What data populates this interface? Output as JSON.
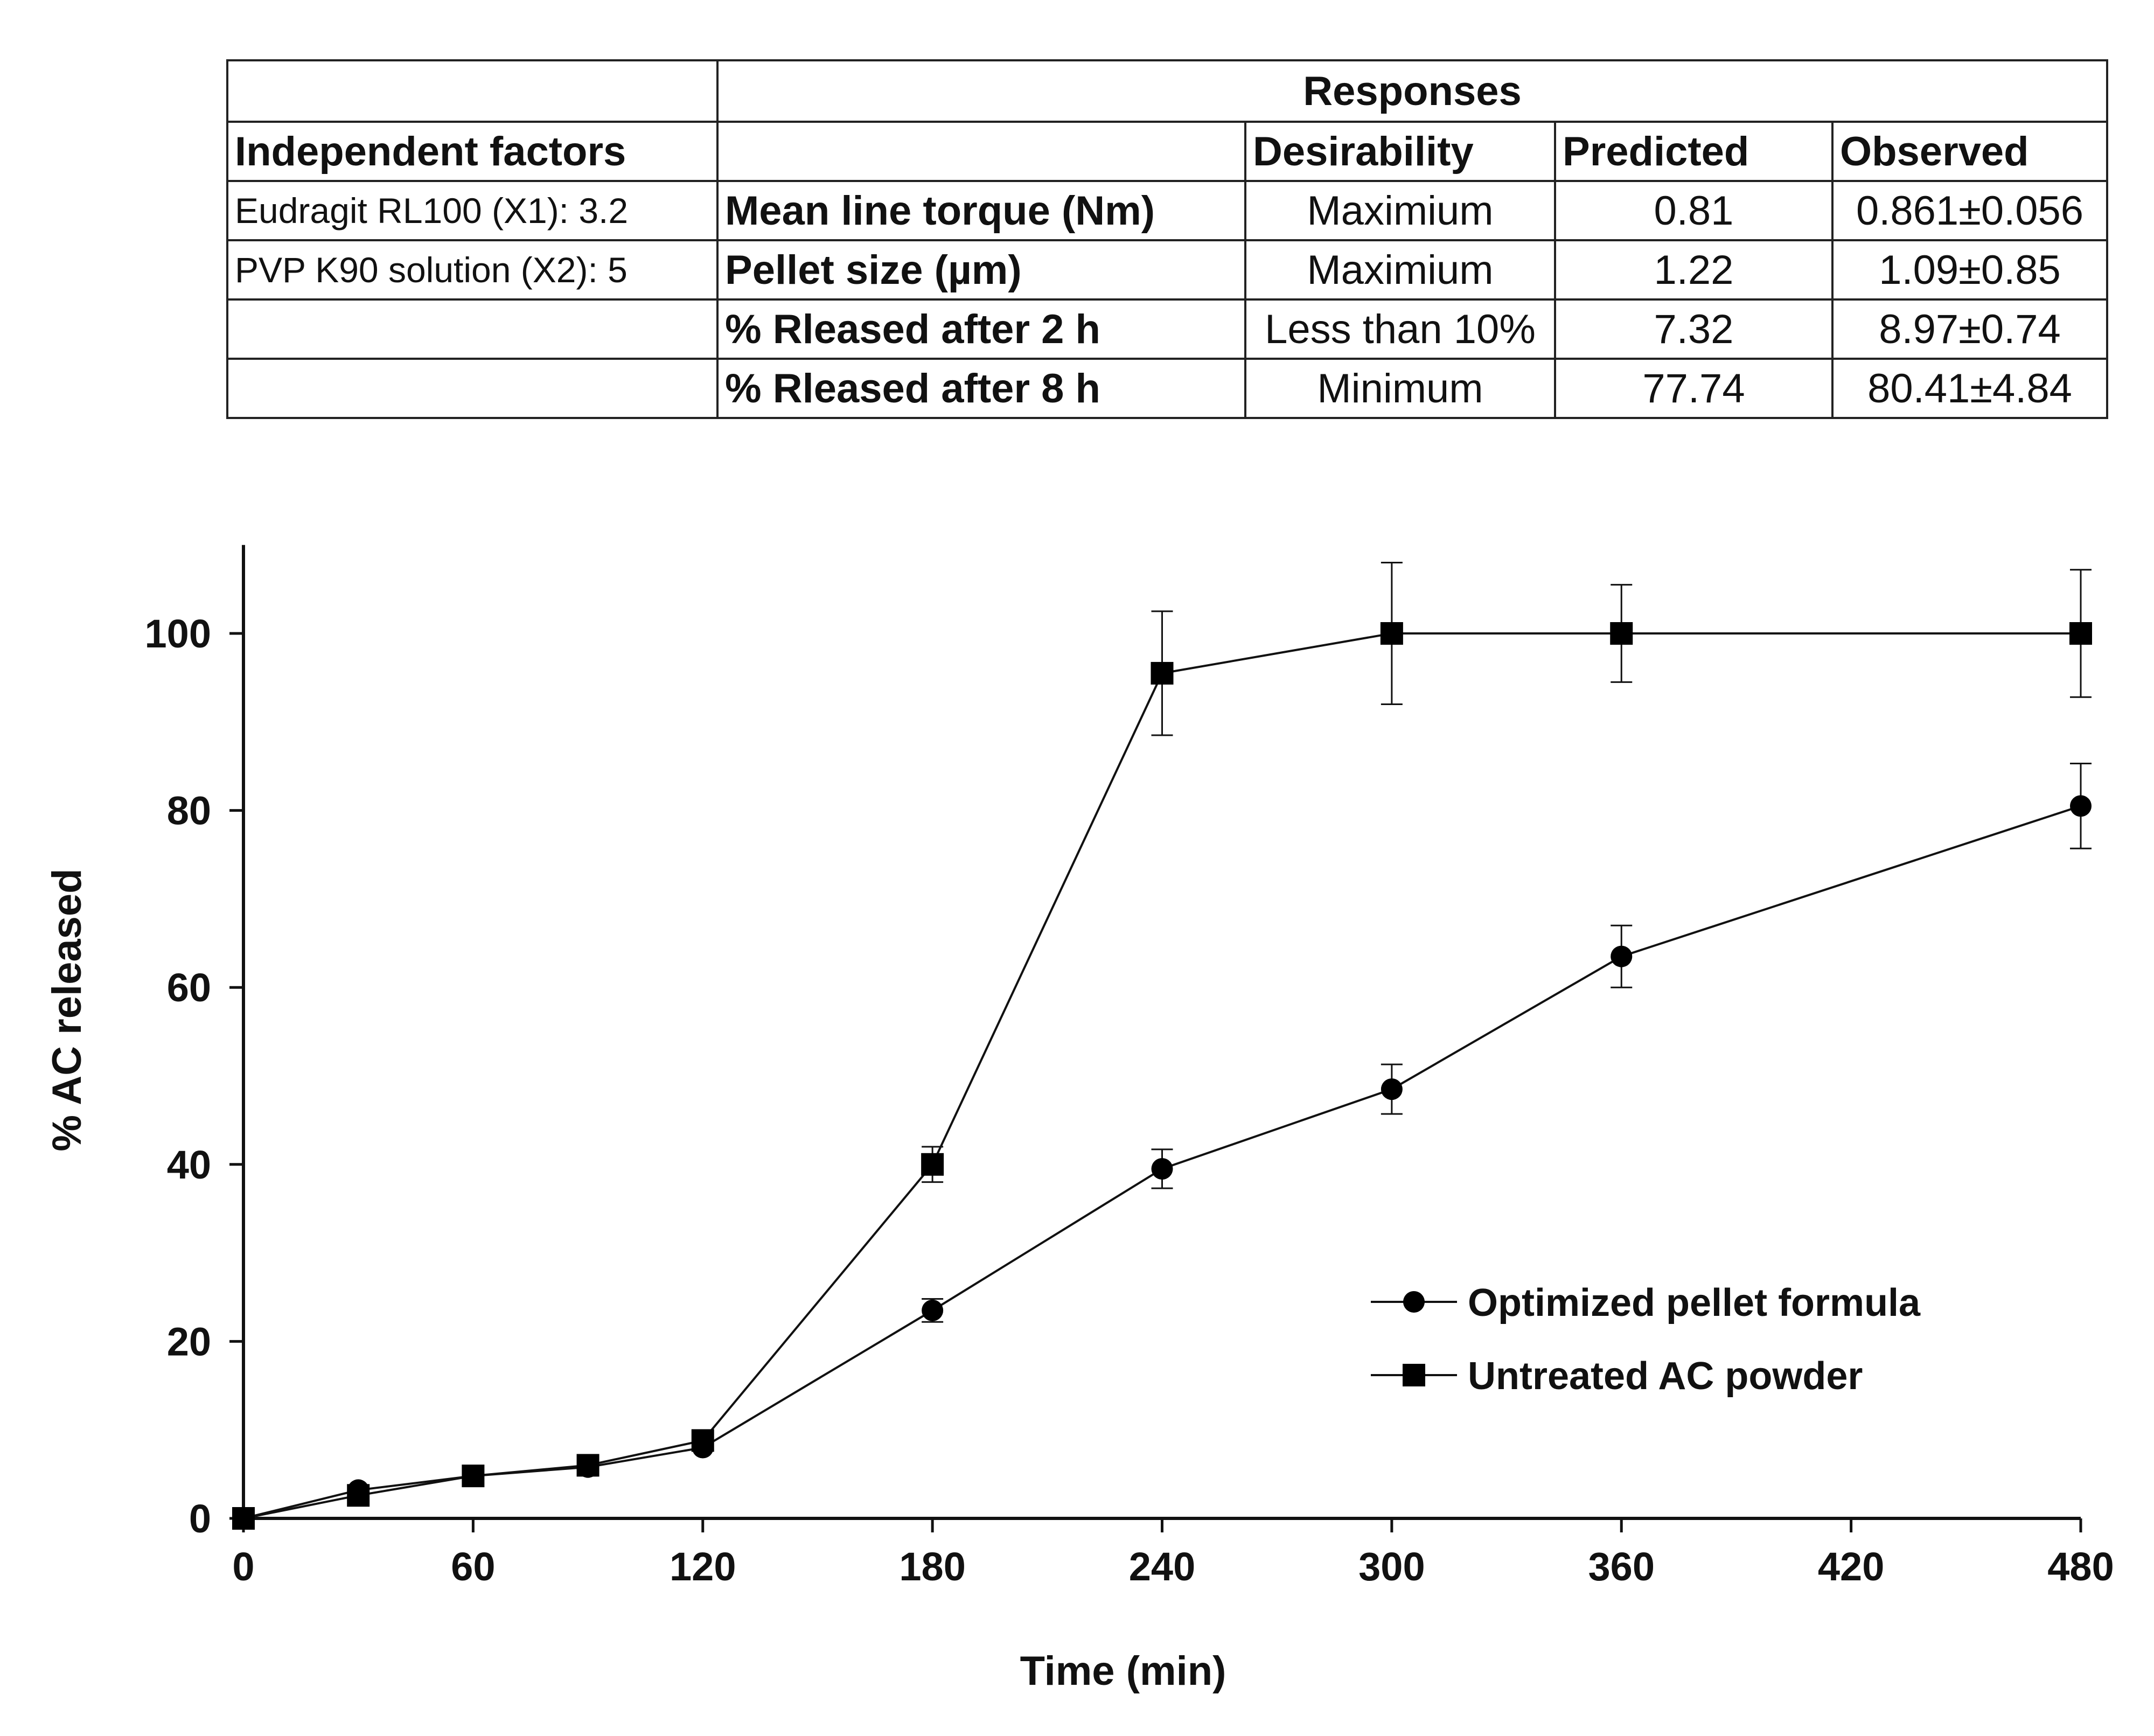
{
  "table": {
    "header_responses": "Responses",
    "col_factors": "Independent factors",
    "col_desirability": "Desirability",
    "col_predicted": "Predicted",
    "col_observed": "Observed",
    "factors": [
      "Eudragit RL100 (X1): 3.2",
      "PVP K90 solution (X2): 5",
      "",
      ""
    ],
    "rows": [
      {
        "response": "Mean line torque (Nm)",
        "desirability": "Maximium",
        "predicted": "0.81",
        "observed": "0.861±0.056"
      },
      {
        "response": "Pellet size (µm)",
        "desirability": "Maximium",
        "predicted": "1.22",
        "observed": "1.09±0.85"
      },
      {
        "response": "% Rleased after 2 h",
        "desirability": "Less than 10%",
        "predicted": "7.32",
        "observed": "8.97±0.74"
      },
      {
        "response": "% Rleased after 8 h",
        "desirability": "Minimum",
        "predicted": "77.74",
        "observed": "80.41±4.84"
      }
    ]
  },
  "chart_data": {
    "type": "line",
    "title": "",
    "xlabel": "Time (min)",
    "ylabel": "% AC released",
    "xlim": [
      0,
      480
    ],
    "ylim": [
      0,
      110
    ],
    "xticks": [
      0,
      60,
      120,
      180,
      240,
      300,
      360,
      420,
      480
    ],
    "yticks": [
      0,
      20,
      40,
      60,
      80,
      100
    ],
    "legend_position": "lower-right",
    "series": [
      {
        "name": "Optimized pellet formula",
        "marker": "circle",
        "x": [
          0,
          30,
          60,
          90,
          120,
          180,
          240,
          300,
          360,
          480
        ],
        "values": [
          0,
          3.2,
          4.8,
          5.8,
          8.0,
          23.5,
          39.5,
          48.5,
          63.5,
          80.5
        ],
        "errors": [
          0,
          0,
          0,
          0,
          0,
          1.3,
          2.2,
          2.8,
          3.5,
          4.8
        ]
      },
      {
        "name": "Untreated AC powder",
        "marker": "square",
        "x": [
          0,
          30,
          60,
          90,
          120,
          180,
          240,
          300,
          360,
          480
        ],
        "values": [
          0,
          2.6,
          4.8,
          6.0,
          8.8,
          40.0,
          95.5,
          100,
          100,
          100
        ],
        "errors": [
          0,
          0,
          0,
          0,
          0,
          2.0,
          7.0,
          8.0,
          5.5,
          7.2
        ]
      }
    ]
  }
}
